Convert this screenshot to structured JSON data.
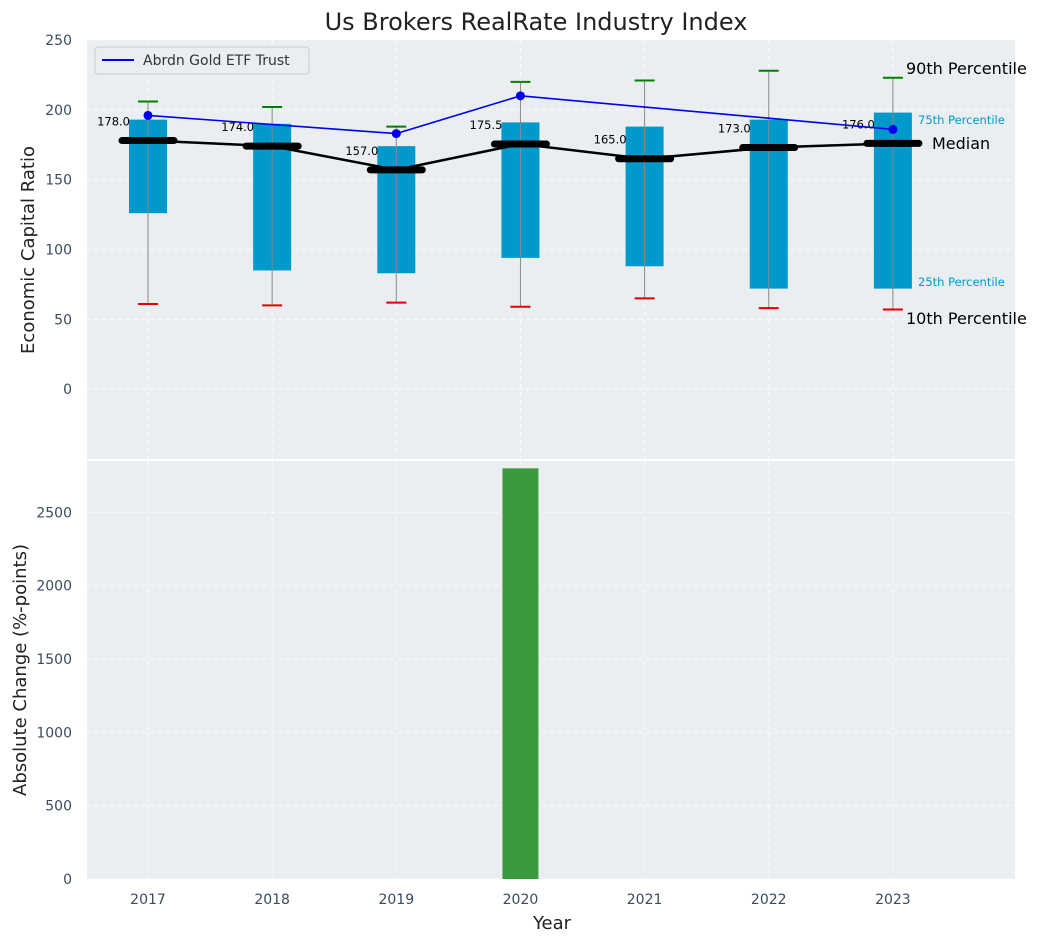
{
  "chart_data": [
    {
      "type": "box",
      "title": "Us Brokers RealRate Industry Index",
      "ylabel": "Economic Capital Ratio",
      "ylim": [
        -50,
        250
      ],
      "yticks": [
        0,
        50,
        100,
        150,
        200,
        250
      ],
      "grid": true,
      "categories": [
        "2017",
        "2018",
        "2019",
        "2020",
        "2021",
        "2022",
        "2023"
      ],
      "p10": [
        61,
        60,
        62,
        59,
        65,
        58,
        57
      ],
      "p25": [
        126,
        85,
        83,
        94,
        88,
        72,
        72
      ],
      "median": [
        178.0,
        174.0,
        157.0,
        175.5,
        165.0,
        173.0,
        176.0
      ],
      "p75": [
        193,
        190,
        174,
        191,
        188,
        193,
        198
      ],
      "p90": [
        206,
        202,
        188,
        220,
        221,
        228,
        223
      ],
      "median_labels": [
        "178.0",
        "174.0",
        "157.0",
        "175.5",
        "165.0",
        "173.0",
        "176.0"
      ],
      "series": [
        {
          "name": "Abrdn Gold ETF Trust",
          "values": [
            196,
            null,
            183,
            210,
            null,
            null,
            186
          ],
          "color": "#0000ee"
        }
      ],
      "legend": {
        "position": "top-left",
        "entries": [
          "Abrdn Gold ETF Trust"
        ]
      },
      "annotations": {
        "p90": "90th Percentile",
        "p75": "75th Percentile",
        "median": "Median",
        "p25": "25th Percentile",
        "p10": "10th Percentile"
      },
      "colors": {
        "box": "#0099cc",
        "whisker": "#888888",
        "p90_cap": "#008000",
        "p10_cap": "#e00000",
        "median": "#000000",
        "background": "#eaeef0"
      }
    },
    {
      "type": "bar",
      "ylabel": "Absolute Change (%-points)",
      "xlabel": "Year",
      "ylim": [
        0,
        2850
      ],
      "yticks": [
        0,
        500,
        1000,
        1500,
        2000,
        2500
      ],
      "grid": true,
      "categories": [
        "2017",
        "2018",
        "2019",
        "2020",
        "2021",
        "2022",
        "2023"
      ],
      "values": [
        null,
        null,
        null,
        2800,
        null,
        null,
        null
      ],
      "colors": {
        "bar": "#3a9a3e",
        "background": "#eaeef0"
      }
    }
  ]
}
